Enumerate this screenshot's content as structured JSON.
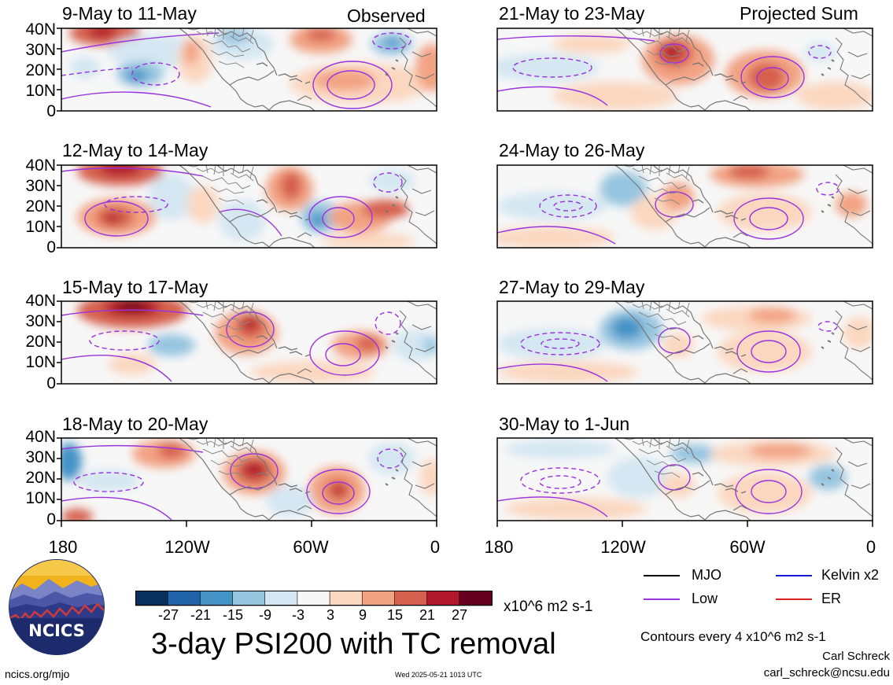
{
  "labels": {
    "observed": "Observed",
    "projected": "Projected Sum"
  },
  "panels": [
    {
      "title": "9-May to 11-May"
    },
    {
      "title": "21-May to 23-May"
    },
    {
      "title": "12-May to 14-May"
    },
    {
      "title": "24-May to 26-May"
    },
    {
      "title": "15-May to 17-May"
    },
    {
      "title": "27-May to 29-May"
    },
    {
      "title": "18-May to 20-May"
    },
    {
      "title": "30-May to 1-Jun"
    }
  ],
  "y_ticks": [
    "40N",
    "30N",
    "20N",
    "10N",
    "0"
  ],
  "x_ticks": [
    "180",
    "120W",
    "60W",
    "0"
  ],
  "colorbar": {
    "colors": [
      "#08305e",
      "#2163a8",
      "#4593c6",
      "#96c5e0",
      "#d4e7f2",
      "#f7f7f7",
      "#fbd7c0",
      "#f2a383",
      "#d6604e",
      "#b2182b",
      "#67001f"
    ],
    "ticks": [
      "-27",
      "-21",
      "-15",
      "-9",
      "-3",
      "3",
      "9",
      "15",
      "21",
      "27"
    ],
    "units": "x10^6 m2 s-1"
  },
  "main_title": "3-day PSI200 with TC removal",
  "legend": [
    {
      "label": "MJO",
      "color": "#000000"
    },
    {
      "label": "Kelvin x2",
      "color": "#1a1ad6"
    },
    {
      "label": "Low",
      "color": "#9933dd"
    },
    {
      "label": "ER",
      "color": "#dd2222"
    }
  ],
  "contour_note": "Contours every 4 x10^6 m2 s-1",
  "author": "Carl Schreck",
  "email": "carl_schreck@ncsu.edu",
  "website": "ncics.org/mjo",
  "timestamp": "Wed 2025-05-21 1013 UTC",
  "logo_text": "NCICS"
}
